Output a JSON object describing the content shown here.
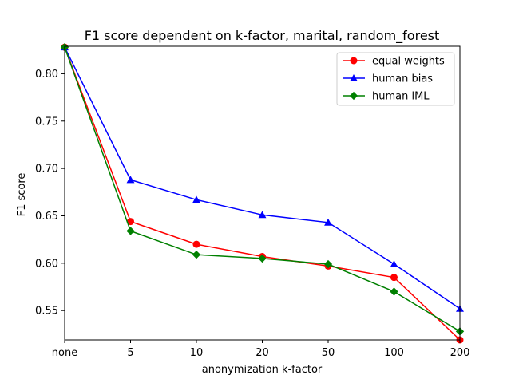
{
  "chart_data": {
    "type": "line",
    "title": "F1 score dependent on k-factor, marital, random_forest",
    "xlabel": "anonymization k-factor",
    "ylabel": "F1 score",
    "categories": [
      "none",
      "5",
      "10",
      "20",
      "50",
      "100",
      "200"
    ],
    "ylim": [
      0.519,
      0.829
    ],
    "yticks": [
      0.55,
      0.6,
      0.65,
      0.7,
      0.75,
      0.8
    ],
    "ytick_labels": [
      "0.55",
      "0.60",
      "0.65",
      "0.70",
      "0.75",
      "0.80"
    ],
    "grid": false,
    "legend_position": "top-right",
    "series": [
      {
        "name": "equal weights",
        "color": "#ff0000",
        "marker": "circle",
        "values": [
          0.828,
          0.644,
          0.62,
          0.607,
          0.597,
          0.585,
          0.519
        ]
      },
      {
        "name": "human bias",
        "color": "#0000ff",
        "marker": "triangle",
        "values": [
          0.828,
          0.688,
          0.667,
          0.651,
          0.643,
          0.599,
          0.552
        ]
      },
      {
        "name": "human iML",
        "color": "#008000",
        "marker": "diamond",
        "values": [
          0.828,
          0.634,
          0.609,
          0.605,
          0.599,
          0.57,
          0.528
        ]
      }
    ]
  }
}
